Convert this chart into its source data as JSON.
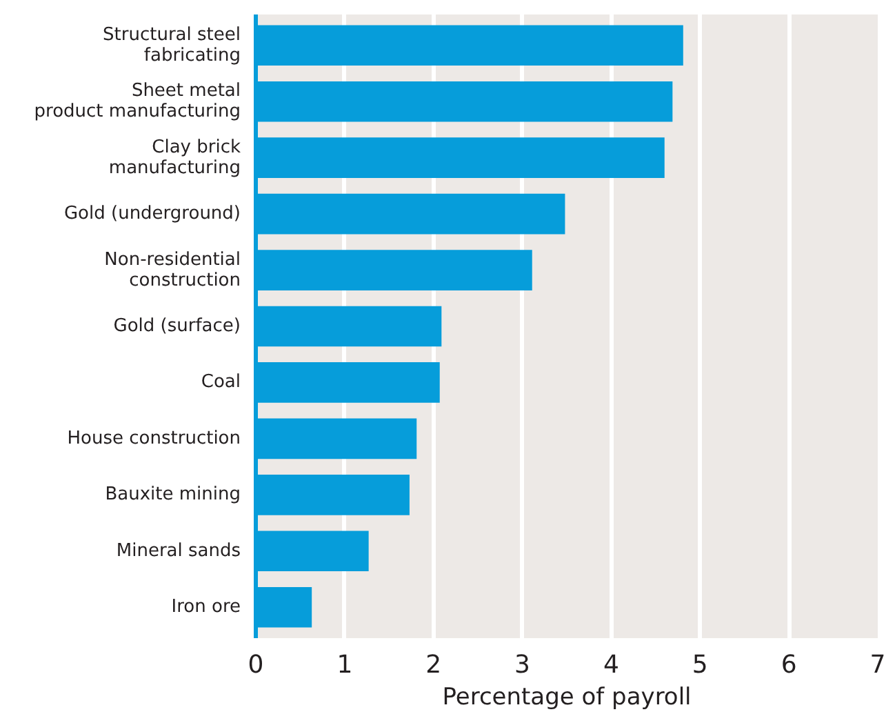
{
  "chart_data": {
    "type": "bar",
    "orientation": "horizontal",
    "xlabel": "Percentage of payroll",
    "categories": [
      "Structural steel\nfabricating",
      "Sheet metal\nproduct manufacturing",
      "Clay brick\nmanufacturing",
      "Gold (underground)",
      "Non-residential\nconstruction",
      "Gold (surface)",
      "Coal",
      "House construction",
      "Bauxite mining",
      "Mineral sands",
      "Iron ore"
    ],
    "values": [
      4.81,
      4.69,
      4.6,
      3.48,
      3.11,
      2.09,
      2.07,
      1.81,
      1.73,
      1.27,
      0.63
    ],
    "color": "#069dda",
    "xlim": [
      0,
      7
    ],
    "xticks": [
      0,
      1,
      2,
      3,
      4,
      5,
      6,
      7
    ],
    "grid": "x"
  }
}
